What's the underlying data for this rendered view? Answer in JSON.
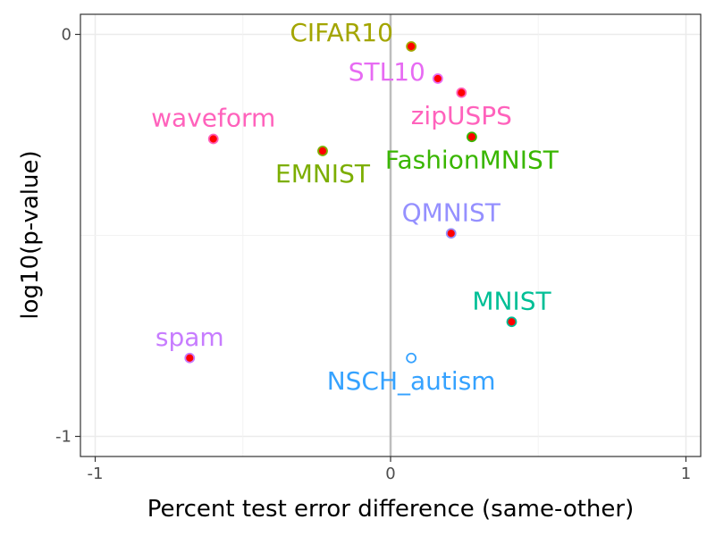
{
  "chart_data": {
    "type": "scatter",
    "title": "",
    "xlabel": "Percent test error difference (same-other)",
    "ylabel": "log10(p-value)",
    "xlim": [
      -1.05,
      1.05
    ],
    "ylim": [
      -1.05,
      0.05
    ],
    "xticks": [
      -1,
      0,
      1
    ],
    "xtick_labels": [
      "-1",
      "0",
      "1"
    ],
    "yticks": [
      0,
      -1
    ],
    "ytick_labels": [
      "0",
      "-1"
    ],
    "grid": true,
    "legend": "none",
    "vline_at_x": 0,
    "points": [
      {
        "label": "CIFAR10",
        "x": 0.07,
        "y": -0.03,
        "color": "#A3A500",
        "fill": "#ff0000",
        "label_pos": "above-left"
      },
      {
        "label": "STL10",
        "x": 0.16,
        "y": -0.11,
        "color": "#E76BF3",
        "fill": "#ff0000",
        "label_pos": "left"
      },
      {
        "label": "zipUSPS",
        "x": 0.24,
        "y": -0.145,
        "color": "#FF62BC",
        "fill": "#ff0000",
        "label_pos": "below"
      },
      {
        "label": "FashionMNIST",
        "x": 0.275,
        "y": -0.255,
        "color": "#39B600",
        "fill": "#ff0000",
        "label_pos": "below"
      },
      {
        "label": "waveform",
        "x": -0.6,
        "y": -0.26,
        "color": "#FF62BC",
        "fill": "#ff0000",
        "label_pos": "above"
      },
      {
        "label": "EMNIST",
        "x": -0.23,
        "y": -0.29,
        "color": "#7CAE00",
        "fill": "#ff0000",
        "label_pos": "below"
      },
      {
        "label": "QMNIST",
        "x": 0.205,
        "y": -0.495,
        "color": "#9590FF",
        "fill": "#ff0000",
        "label_pos": "above"
      },
      {
        "label": "MNIST",
        "x": 0.41,
        "y": -0.715,
        "color": "#00BF96",
        "fill": "#ff0000",
        "label_pos": "above"
      },
      {
        "label": "spam",
        "x": -0.68,
        "y": -0.805,
        "color": "#C77CFF",
        "fill": "#ff0000",
        "label_pos": "above"
      },
      {
        "label": "NSCH_autism",
        "x": 0.07,
        "y": -0.805,
        "color": "#35A2FF",
        "fill": "#ffffff",
        "label_pos": "below"
      }
    ]
  }
}
